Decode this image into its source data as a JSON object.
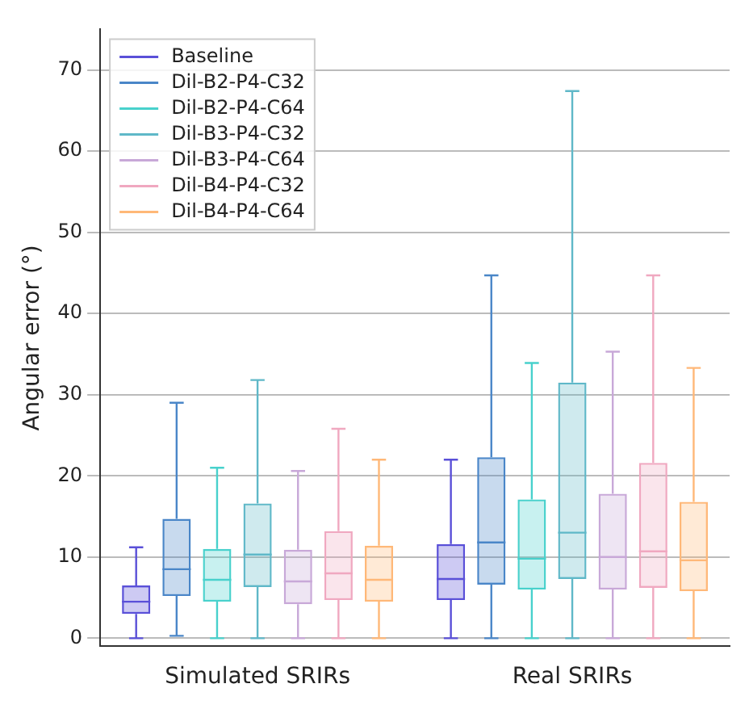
{
  "chart_data": {
    "type": "box",
    "ylabel": "Angular error (°)",
    "categories": [
      "Simulated SRIRs",
      "Real SRIRs"
    ],
    "ylim": [
      -1,
      75
    ],
    "yticks": [
      0,
      10,
      20,
      30,
      40,
      50,
      60,
      70
    ],
    "grid": "y",
    "legend": "top left",
    "series": [
      {
        "name": "Baseline",
        "color": "#5a50d8",
        "boxes": [
          {
            "low": 0,
            "q1": 3,
            "median": 4.5,
            "q3": 6.5,
            "high": 11.2
          },
          {
            "low": 0,
            "q1": 4.7,
            "median": 7.3,
            "q3": 11.6,
            "high": 22
          }
        ]
      },
      {
        "name": "Dil-B2-P4-C32",
        "color": "#4a86c8",
        "boxes": [
          {
            "low": 0.3,
            "q1": 5.2,
            "median": 8.5,
            "q3": 14.7,
            "high": 29
          },
          {
            "low": 0,
            "q1": 6.6,
            "median": 11.8,
            "q3": 22.3,
            "high": 44.7
          }
        ]
      },
      {
        "name": "Dil-B2-P4-C64",
        "color": "#48d1cc",
        "boxes": [
          {
            "low": 0,
            "q1": 4.5,
            "median": 7.2,
            "q3": 11,
            "high": 21
          },
          {
            "low": 0,
            "q1": 6,
            "median": 9.8,
            "q3": 17.1,
            "high": 33.9
          }
        ]
      },
      {
        "name": "Dil-B3-P4-C32",
        "color": "#5fb8c8",
        "boxes": [
          {
            "low": 0,
            "q1": 6.3,
            "median": 10.3,
            "q3": 16.6,
            "high": 31.8
          },
          {
            "low": 0,
            "q1": 7.3,
            "median": 13,
            "q3": 31.5,
            "high": 67.4
          }
        ]
      },
      {
        "name": "Dil-B3-P4-C64",
        "color": "#c8a8d8",
        "boxes": [
          {
            "low": 0,
            "q1": 4.2,
            "median": 7,
            "q3": 10.9,
            "high": 20.6
          },
          {
            "low": 0,
            "q1": 6,
            "median": 10,
            "q3": 17.8,
            "high": 35.3
          }
        ]
      },
      {
        "name": "Dil-B4-P4-C32",
        "color": "#f0a8c0",
        "boxes": [
          {
            "low": 0,
            "q1": 4.7,
            "median": 8,
            "q3": 13.2,
            "high": 25.8
          },
          {
            "low": 0,
            "q1": 6.2,
            "median": 10.7,
            "q3": 21.6,
            "high": 44.7
          }
        ]
      },
      {
        "name": "Dil-B4-P4-C64",
        "color": "#ffb878",
        "boxes": [
          {
            "low": 0,
            "q1": 4.5,
            "median": 7.2,
            "q3": 11.4,
            "high": 22
          },
          {
            "low": 0,
            "q1": 5.8,
            "median": 9.6,
            "q3": 16.8,
            "high": 33.3
          }
        ]
      }
    ]
  }
}
